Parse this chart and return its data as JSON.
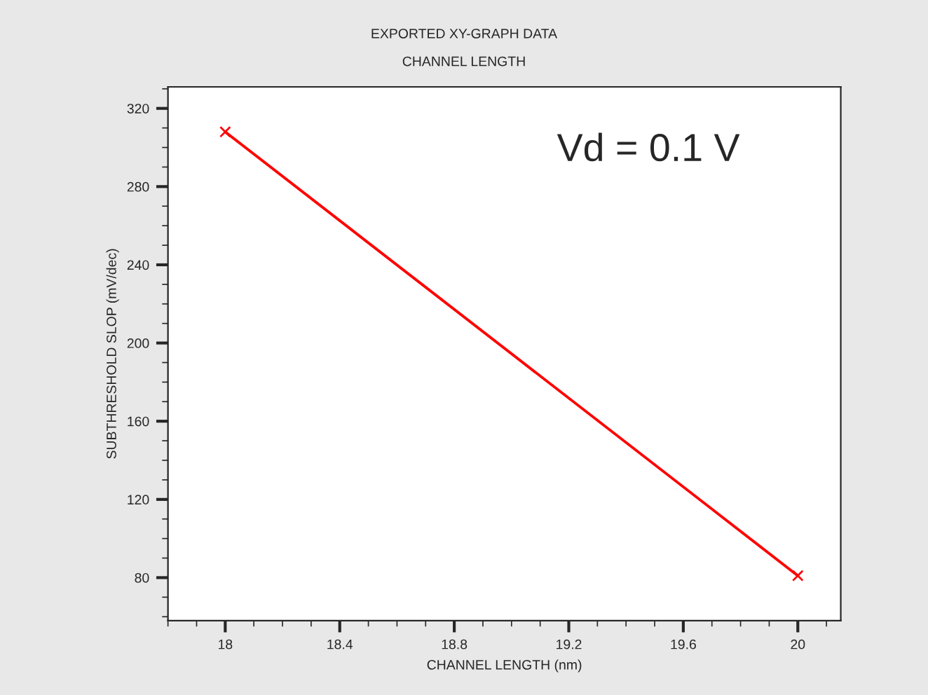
{
  "chart_data": {
    "type": "line",
    "title": "EXPORTED XY-GRAPH DATA",
    "subtitle": "CHANNEL LENGTH",
    "xlabel": "CHANNEL LENGTH (nm)",
    "ylabel": "SUBTHRESHOLD SLOP (mV/dec)",
    "annotations": [
      "Vd = 0.1 V"
    ],
    "x": [
      18,
      20
    ],
    "series": [
      {
        "color": "#ff0000",
        "values": [
          308,
          81
        ]
      }
    ],
    "marker": "cross",
    "line_style": "solid",
    "xlim": [
      17.8,
      20.15
    ],
    "ylim": [
      58,
      331
    ],
    "xticks": [
      18,
      18.4,
      18.8,
      19.2,
      19.6,
      20
    ],
    "yticks": [
      80,
      120,
      160,
      200,
      240,
      280,
      320
    ],
    "grid": false,
    "legend": false
  }
}
